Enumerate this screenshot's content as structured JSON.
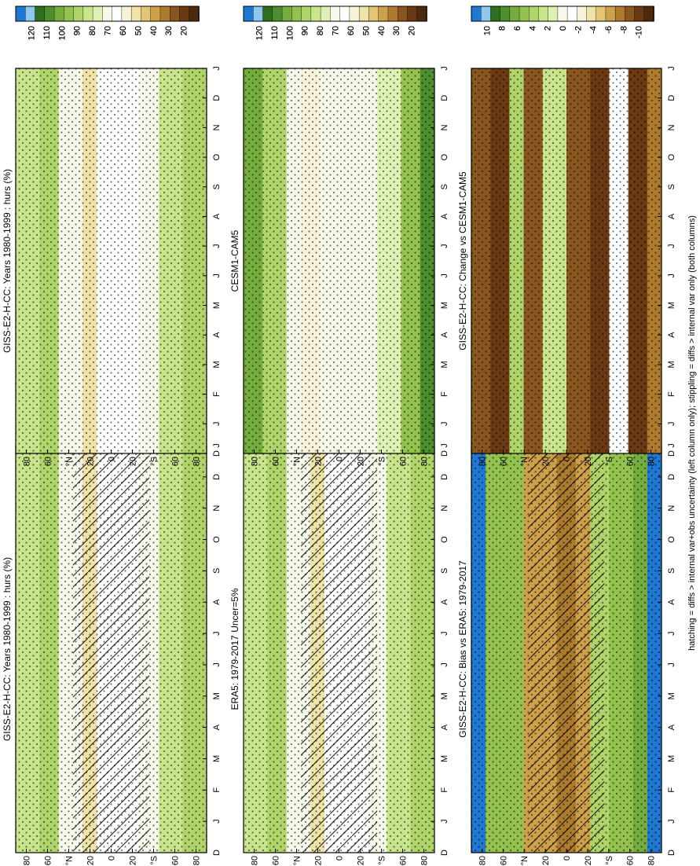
{
  "footer": {
    "note": "hatching = diffs > internal var+obs uncertainty (left column only); stippling = diffs > internal var only (both columns)"
  },
  "colors": {
    "abs_scale": [
      "#1f78d1",
      "#8ec8f0",
      "#2e6e1e",
      "#4d8f2c",
      "#74ad3e",
      "#93c24e",
      "#afd46a",
      "#c8e48c",
      "#dff0b4",
      "#f6f8ea",
      "#ffffff",
      "#f8f3d8",
      "#f0e3a8",
      "#e2c676",
      "#cda04a",
      "#ad7a2e",
      "#8a5620",
      "#6b3a14",
      "#4e2a0c"
    ],
    "diff_scale": [
      "#1f78d1",
      "#8ec8f0",
      "#2e6e1e",
      "#4d8f2c",
      "#74ad3e",
      "#93c24e",
      "#afd46a",
      "#c8e48c",
      "#dff0b4",
      "#f6f8ea",
      "#ffffff",
      "#f8f3d8",
      "#f0e3a8",
      "#e2c676",
      "#cda04a",
      "#ad7a2e",
      "#8a5620",
      "#6b3a14",
      "#4e2a0c"
    ]
  },
  "chart_data": [
    {
      "type": "heatmap",
      "panel": "top-left",
      "title": "GISS-E2-H-CC: Years 1980-1999 : hurs (%)",
      "x_ticks": [
        "D",
        "J",
        "F",
        "M",
        "A",
        "M",
        "J",
        "J",
        "A",
        "S",
        "O",
        "N",
        "D",
        "J"
      ],
      "y_ticks": [
        "80",
        "60",
        "°N",
        "20",
        "0",
        "20",
        "°S",
        "60",
        "80"
      ],
      "colorbar": {
        "labels": [
          "120",
          "110",
          "100",
          "90",
          "80",
          "70",
          "60",
          "50",
          "40",
          "30",
          "20"
        ],
        "range": [
          15,
          125
        ]
      },
      "hatching": true,
      "stippling": true
    },
    {
      "type": "heatmap",
      "panel": "top-right",
      "title": "GISS-E2-H-CC: Years 1980-1999 : hurs (%)",
      "x_ticks": [
        "D",
        "J",
        "F",
        "M",
        "A",
        "M",
        "J",
        "J",
        "A",
        "S",
        "O",
        "N",
        "D",
        "J"
      ],
      "y_ticks": [
        "80",
        "60",
        "°N",
        "20",
        "0",
        "20",
        "°S",
        "60",
        "80"
      ],
      "colorbar": {
        "labels": [
          "120",
          "110",
          "100",
          "90",
          "80",
          "70",
          "60",
          "50",
          "40",
          "30",
          "20"
        ],
        "range": [
          15,
          125
        ]
      },
      "hatching": false,
      "stippling": true
    },
    {
      "type": "heatmap",
      "panel": "middle-left",
      "title": "ERA5: 1979-2017 Uncer=5%",
      "x_ticks": [
        "D",
        "J",
        "F",
        "M",
        "A",
        "M",
        "J",
        "J",
        "A",
        "S",
        "O",
        "N",
        "D",
        "J"
      ],
      "y_ticks": [
        "80",
        "60",
        "°N",
        "20",
        "0",
        "20",
        "°S",
        "60",
        "80"
      ],
      "colorbar": {
        "labels": [
          "120",
          "110",
          "100",
          "90",
          "80",
          "70",
          "60",
          "50",
          "40",
          "30",
          "20"
        ],
        "range": [
          15,
          125
        ]
      },
      "hatching": true,
      "stippling": true
    },
    {
      "type": "heatmap",
      "panel": "middle-right",
      "title": "CESM1-CAM5",
      "x_ticks": [
        "D",
        "J",
        "F",
        "M",
        "A",
        "M",
        "J",
        "J",
        "A",
        "S",
        "O",
        "N",
        "D",
        "J"
      ],
      "y_ticks": [
        "80",
        "60",
        "°N",
        "20",
        "0",
        "20",
        "°S",
        "60",
        "80"
      ],
      "colorbar": {
        "labels": [
          "120",
          "110",
          "100",
          "90",
          "80",
          "70",
          "60",
          "50",
          "40",
          "30",
          "20"
        ],
        "range": [
          15,
          125
        ]
      },
      "hatching": false,
      "stippling": true
    },
    {
      "type": "heatmap",
      "panel": "bottom-left",
      "title": "GISS-E2-H-CC: Bias vs ERA5: 1979-2017",
      "x_ticks": [
        "D",
        "J",
        "F",
        "M",
        "A",
        "M",
        "J",
        "J",
        "A",
        "S",
        "O",
        "N",
        "D",
        "J"
      ],
      "y_ticks": [
        "80",
        "60",
        "°N",
        "20",
        "0",
        "20",
        "°S",
        "60",
        "80"
      ],
      "colorbar": {
        "labels": [
          "10",
          "8",
          "6",
          "4",
          "2",
          "0",
          "-2",
          "-4",
          "-6",
          "-8",
          "-10"
        ],
        "range": [
          -11,
          11
        ]
      },
      "hatching": true,
      "stippling": true
    },
    {
      "type": "heatmap",
      "panel": "bottom-right",
      "title": "GISS-E2-H-CC: Change vs CESM1-CAM5",
      "x_ticks": [
        "D",
        "J",
        "F",
        "M",
        "A",
        "M",
        "J",
        "J",
        "A",
        "S",
        "O",
        "N",
        "D",
        "J"
      ],
      "y_ticks": [
        "80",
        "60",
        "°N",
        "20",
        "0",
        "20",
        "°S",
        "60",
        "80"
      ],
      "colorbar": {
        "labels": [
          "10",
          "8",
          "6",
          "4",
          "2",
          "0",
          "-2",
          "-4",
          "-6",
          "-8",
          "-10"
        ],
        "range": [
          -11,
          11
        ]
      },
      "hatching": false,
      "stippling": true
    }
  ]
}
